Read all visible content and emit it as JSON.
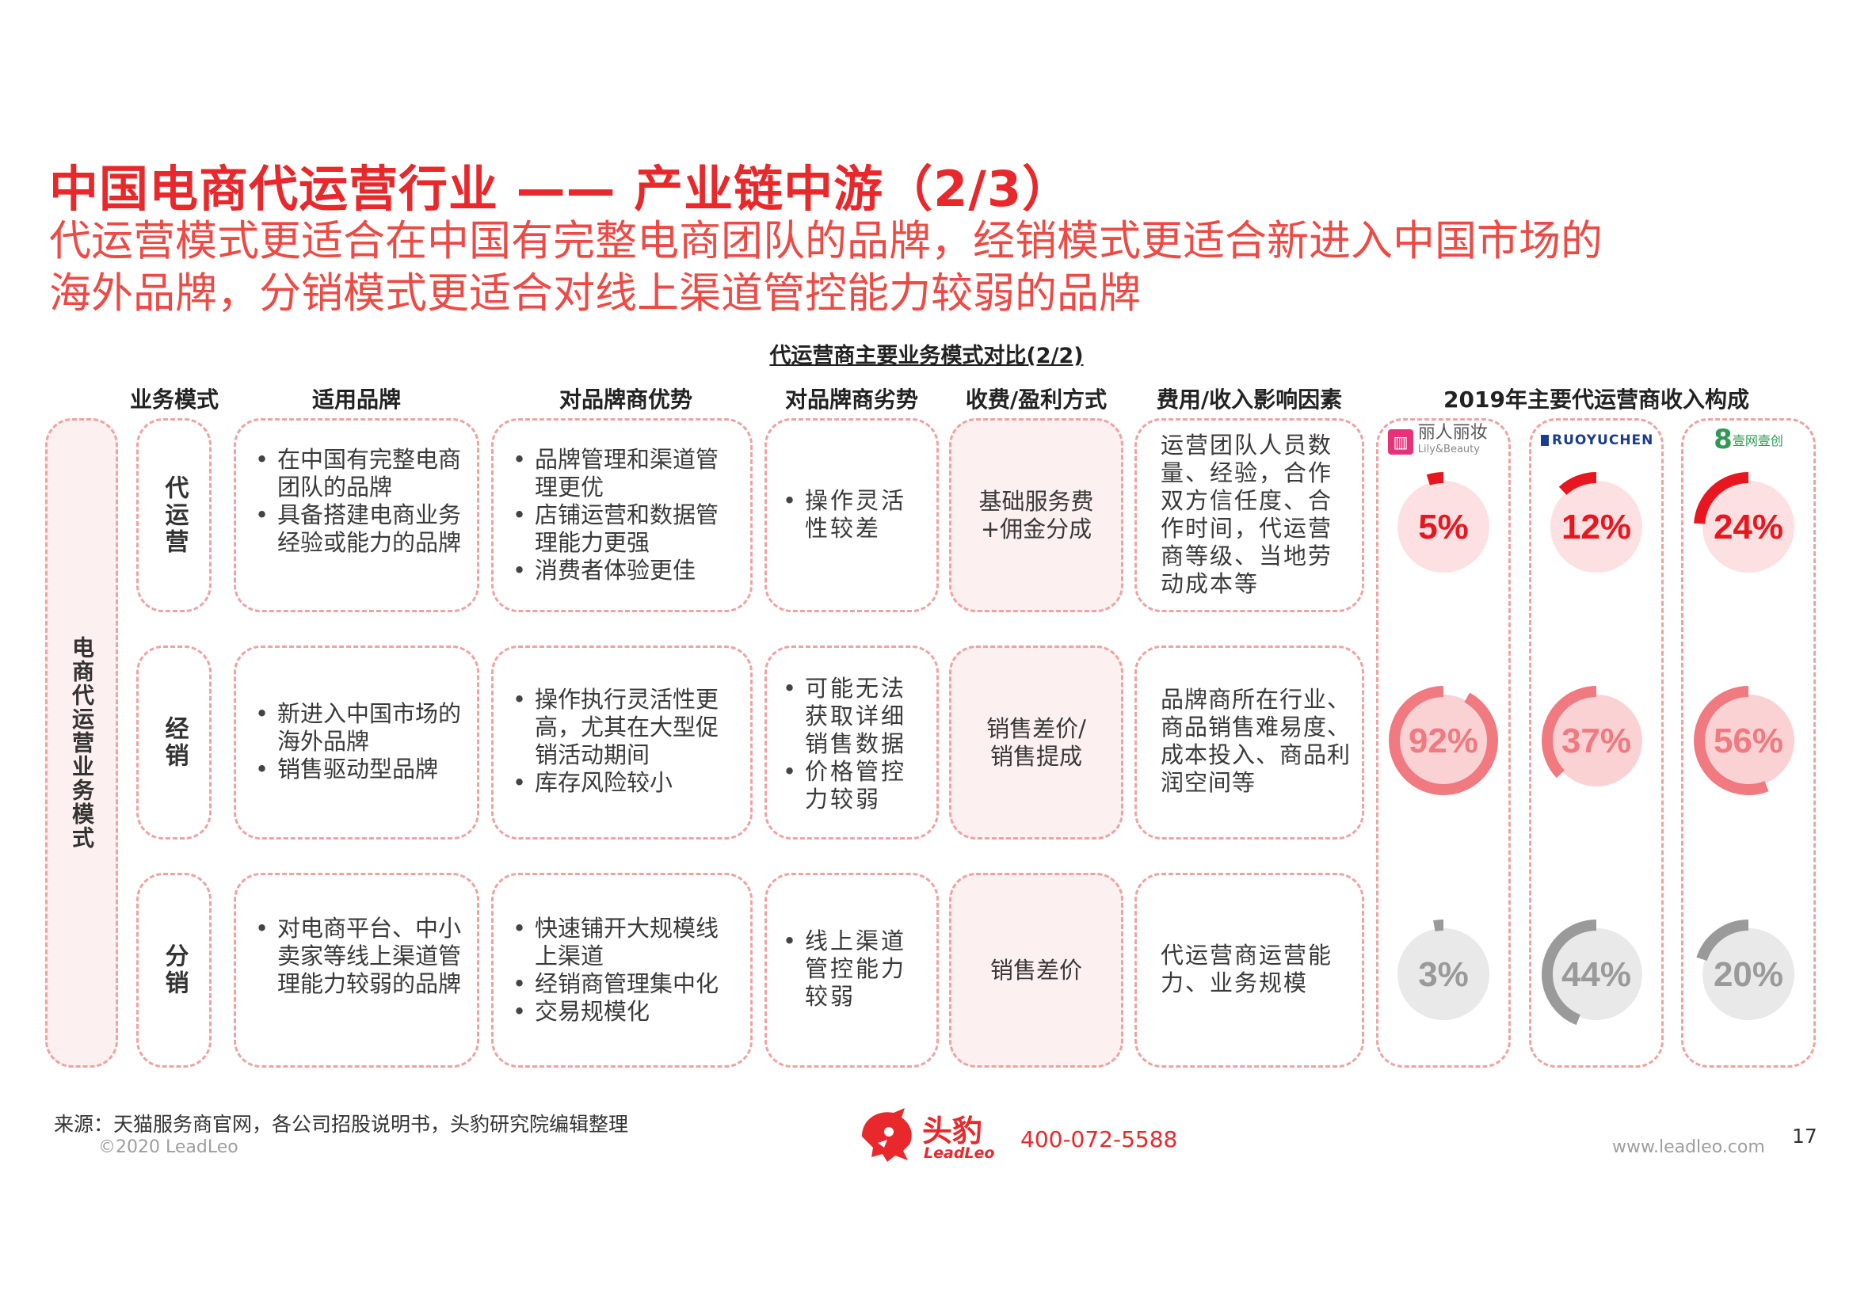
{
  "title": "中国电商代运营行业 —— 产业链中游（2/3）",
  "subtitle_lines": [
    "代运营模式更适合在中国有完整电商团队的品牌，经销模式更适合新进入中国市场的",
    "海外品牌，分销模式更适合对线上渠道管控能力较弱的品牌"
  ],
  "table_title": "代运营商主要业务模式对比(2/2)",
  "columns": [
    "业务模式",
    "适用品牌",
    "对品牌商优势",
    "对品牌商劣势",
    "收费/盈利方式",
    "费用/收入影响因素",
    "2019年主要代运营商收入构成"
  ],
  "side_label": "电商代运营业务模式",
  "rows": [
    {
      "mode": "代运营",
      "brands": [
        "在中国有完整电商团队的品牌",
        "具备搭建电商业务经验或能力的品牌"
      ],
      "advantages": [
        "品牌管理和渠道管理更优",
        "店铺运营和数据管理能力更强",
        "消费者体验更佳"
      ],
      "disadvantages": [
        "操作灵活性较差"
      ],
      "fee": "基础服务费+佣金分成",
      "factors": "运营团队人员数量、经验，合作双方信任度、合作时间，代运营商等级、当地劳动成本等"
    },
    {
      "mode": "经销",
      "brands": [
        "新进入中国市场的海外品牌",
        "销售驱动型品牌"
      ],
      "advantages": [
        "操作执行灵活性更高，尤其在大型促销活动期间",
        "库存风险较小"
      ],
      "disadvantages": [
        "可能无法获取详细销售数据",
        "价格管控力较弱"
      ],
      "fee": "销售差价/销售提成",
      "factors": "品牌商所在行业、商品销售难易度、成本投入、商品利润空间等"
    },
    {
      "mode": "分销",
      "brands": [
        "对电商平台、中小卖家等线上渠道管理能力较弱的品牌"
      ],
      "advantages": [
        "快速铺开大规模线上渠道",
        "经销商管理集中化",
        "交易规模化"
      ],
      "disadvantages": [
        "线上渠道管控能力较弱"
      ],
      "fee": "销售差价",
      "factors": "代运营商运营能力、业务规模"
    }
  ],
  "companies": [
    {
      "logo": "丽人丽妆",
      "logo_sub": "Lily&Beauty",
      "logo_color": "#e8317a"
    },
    {
      "logo": "RUOYUCHEN",
      "logo_sub": "",
      "logo_color": "#1b3b8c"
    },
    {
      "logo": "壹网壹创",
      "logo_sub": "",
      "logo_color": "#2f9a53"
    }
  ],
  "chart_data": {
    "type": "gauge",
    "title": "2019年主要代运营商收入构成",
    "categories": [
      "代运营",
      "经销",
      "分销"
    ],
    "series": [
      {
        "name": "丽人丽妆",
        "values": [
          5,
          92,
          3
        ]
      },
      {
        "name": "RUOYUCHEN",
        "values": [
          12,
          37,
          44
        ]
      },
      {
        "name": "壹网壹创",
        "values": [
          24,
          56,
          20
        ]
      }
    ],
    "labels": [
      [
        "5%",
        "92%",
        "3%"
      ],
      [
        "12%",
        "37%",
        "44%"
      ],
      [
        "24%",
        "56%",
        "20%"
      ]
    ],
    "colors": {
      "代运营": "#e8171f",
      "经销": "#f07a80",
      "分销": "#9a9a9a"
    }
  },
  "footer": {
    "source": "来源：天猫服务商官网，各公司招股说明书，头豹研究院编辑整理",
    "copyright": "©2020 LeadLeo",
    "brand_cn": "头豹",
    "brand_en": "LeadLeo",
    "phone": "400-072-5588",
    "website": "www.leadleo.com",
    "page": "17"
  }
}
